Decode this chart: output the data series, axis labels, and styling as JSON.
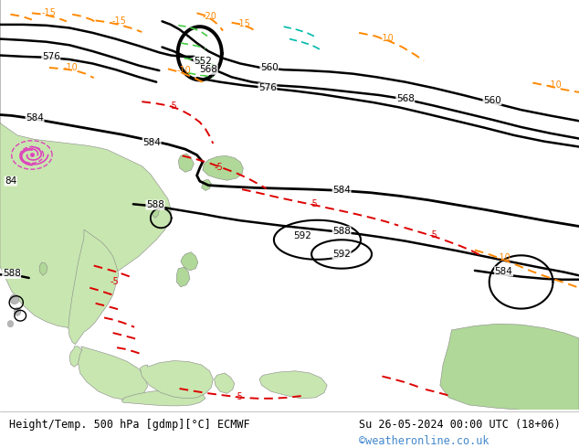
{
  "title_left": "Height/Temp. 500 hPa [gdmp][°C] ECMWF",
  "title_right": "Su 26-05-2024 00:00 UTC (18+06)",
  "watermark": "©weatheronline.co.uk",
  "bg_color": "#ffffff",
  "ocean_color": "#c8c8c8",
  "land_color": "#c8e6b0",
  "land_color2": "#b0d898",
  "bottom_bar_color": "#ffffff",
  "bottom_text_color": "#000000",
  "watermark_color": "#4488cc",
  "font_size_bottom": 9,
  "fig_width": 6.34,
  "fig_height": 4.9,
  "contour_color": "#000000",
  "red_dash_color": "#dd0000",
  "orange_dash_color": "#ff8800",
  "green_dash_color": "#44cc44",
  "cyan_dash_color": "#00bbaa",
  "typhoon_color": "#dd44bb"
}
